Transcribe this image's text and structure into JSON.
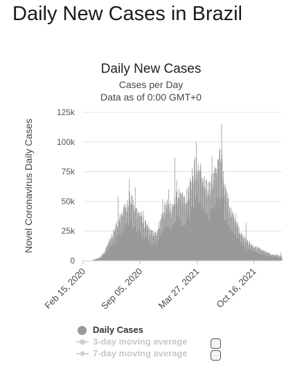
{
  "page": {
    "title": "Daily New Cases in Brazil"
  },
  "chart_data": {
    "type": "bar",
    "title": "Daily New Cases",
    "subtitle_lines": [
      "Cases per Day",
      "Data as of 0:00 GMT+0"
    ],
    "ylabel": "Novel Coronavirus Daily Cases",
    "xlabel": "",
    "x_start_date": "2020-02-15",
    "x_end_date": "2022-01-24",
    "ylim": [
      0,
      125000
    ],
    "yticks": [
      {
        "value": 0,
        "label": "0"
      },
      {
        "value": 25000,
        "label": "25k"
      },
      {
        "value": 50000,
        "label": "50k"
      },
      {
        "value": 75000,
        "label": "75k"
      },
      {
        "value": 100000,
        "label": "100k"
      },
      {
        "value": 125000,
        "label": "125k"
      }
    ],
    "xticks": [
      {
        "date": "2020-02-15",
        "label": "Feb 15, 2020"
      },
      {
        "date": "2020-09-05",
        "label": "Sep 05, 2020"
      },
      {
        "date": "2021-03-27",
        "label": "Mar 27, 2021"
      },
      {
        "date": "2021-10-16",
        "label": "Oct 16, 2021"
      }
    ],
    "grid": true,
    "bar_color": "#999999",
    "series_name": "Daily Cases",
    "envelope_note": "approximate daily values read from the image",
    "envelope": [
      [
        "2020-02-15",
        0
      ],
      [
        "2020-03-15",
        200
      ],
      [
        "2020-04-01",
        1500
      ],
      [
        "2020-04-15",
        3000
      ],
      [
        "2020-05-01",
        7000
      ],
      [
        "2020-05-15",
        14000
      ],
      [
        "2020-06-01",
        22000
      ],
      [
        "2020-06-15",
        30000
      ],
      [
        "2020-07-01",
        38000
      ],
      [
        "2020-07-15",
        44000
      ],
      [
        "2020-07-29",
        55000
      ],
      [
        "2020-08-15",
        43000
      ],
      [
        "2020-09-01",
        40000
      ],
      [
        "2020-09-15",
        33000
      ],
      [
        "2020-10-01",
        28000
      ],
      [
        "2020-10-15",
        23000
      ],
      [
        "2020-11-01",
        22000
      ],
      [
        "2020-11-15",
        32000
      ],
      [
        "2020-12-01",
        42000
      ],
      [
        "2020-12-15",
        46000
      ],
      [
        "2021-01-01",
        42000
      ],
      [
        "2021-01-15",
        55000
      ],
      [
        "2021-02-01",
        52000
      ],
      [
        "2021-02-15",
        52000
      ],
      [
        "2021-03-01",
        62000
      ],
      [
        "2021-03-15",
        75000
      ],
      [
        "2021-03-27",
        80000
      ],
      [
        "2021-04-10",
        73000
      ],
      [
        "2021-04-25",
        60000
      ],
      [
        "2021-05-10",
        60000
      ],
      [
        "2021-05-25",
        68000
      ],
      [
        "2021-06-10",
        78000
      ],
      [
        "2021-06-23",
        90000
      ],
      [
        "2021-07-05",
        57000
      ],
      [
        "2021-07-20",
        45000
      ],
      [
        "2021-08-05",
        35000
      ],
      [
        "2021-08-20",
        28000
      ],
      [
        "2021-09-05",
        21000
      ],
      [
        "2021-09-20",
        16000
      ],
      [
        "2021-10-05",
        13000
      ],
      [
        "2021-10-20",
        11000
      ],
      [
        "2021-11-05",
        10000
      ],
      [
        "2021-11-20",
        8000
      ],
      [
        "2021-12-05",
        6500
      ],
      [
        "2021-12-20",
        5000
      ],
      [
        "2022-01-05",
        4500
      ],
      [
        "2022-01-24",
        4000
      ]
    ],
    "spikes": [
      [
        "2020-07-29",
        69000
      ],
      [
        "2020-08-19",
        62000
      ],
      [
        "2020-06-19",
        54000
      ],
      [
        "2020-07-08",
        45000
      ],
      [
        "2020-09-17",
        42000
      ],
      [
        "2020-11-25",
        52000
      ],
      [
        "2020-12-16",
        60000
      ],
      [
        "2021-01-07",
        87000
      ],
      [
        "2021-01-14",
        68000
      ],
      [
        "2021-03-10",
        78000
      ],
      [
        "2021-03-25",
        100000
      ],
      [
        "2021-05-20",
        88000
      ],
      [
        "2021-06-03",
        78000
      ],
      [
        "2021-06-17",
        94000
      ],
      [
        "2021-06-23",
        115000
      ],
      [
        "2021-07-14",
        57000
      ],
      [
        "2021-08-12",
        40000
      ],
      [
        "2021-09-18",
        32000
      ],
      [
        "2022-01-20",
        7000
      ]
    ]
  },
  "legend": {
    "items": [
      {
        "label": "Daily Cases",
        "marker": "circle",
        "state": "active"
      },
      {
        "label": "3-day moving average",
        "marker": "circle",
        "state": "inactive"
      },
      {
        "label": "7-day moving average",
        "marker": "diamond",
        "state": "inactive"
      }
    ]
  }
}
